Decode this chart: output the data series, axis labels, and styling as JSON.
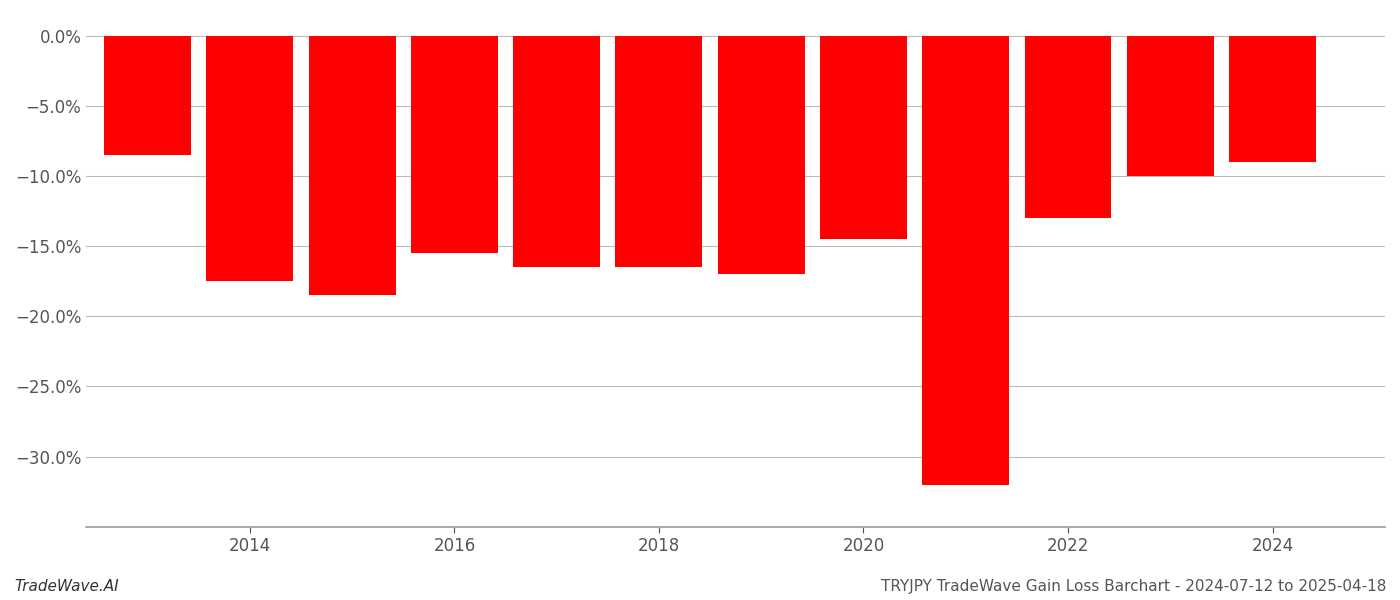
{
  "years": [
    2013,
    2014,
    2015,
    2016,
    2017,
    2018,
    2019,
    2020,
    2021,
    2022,
    2023,
    2024
  ],
  "values": [
    -8.5,
    -17.5,
    -18.5,
    -15.5,
    -16.5,
    -16.5,
    -17.0,
    -14.5,
    -32.0,
    -13.0,
    -10.0,
    -9.0
  ],
  "bar_color": "#ff0000",
  "background_color": "#ffffff",
  "grid_color": "#bbbbbb",
  "tick_label_color": "#555555",
  "footer_left": "TradeWave.AI",
  "footer_right": "TRYJPY TradeWave Gain Loss Barchart - 2024-07-12 to 2025-04-18",
  "ylim": [
    -35,
    1.5
  ],
  "yticks": [
    0.0,
    -5.0,
    -10.0,
    -15.0,
    -20.0,
    -25.0,
    -30.0
  ],
  "xticks": [
    2014,
    2016,
    2018,
    2020,
    2022,
    2024
  ],
  "bar_width": 0.85,
  "xlim_left": 2012.4,
  "xlim_right": 2025.1
}
